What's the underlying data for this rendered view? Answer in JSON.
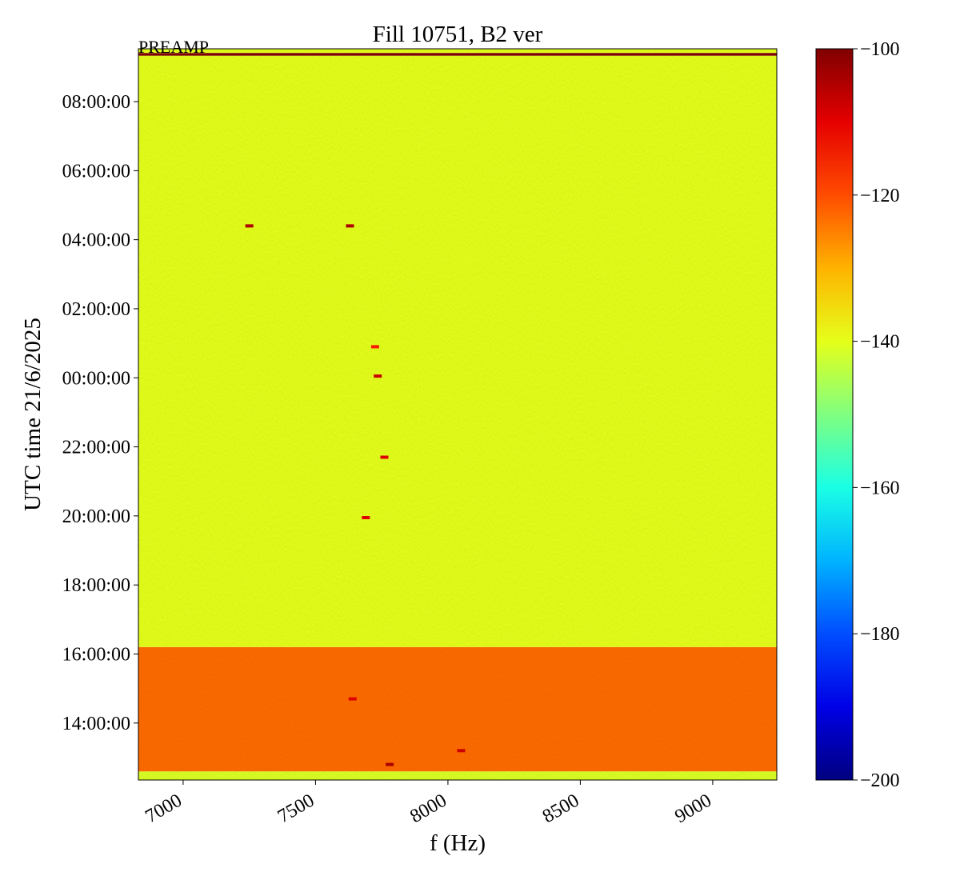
{
  "chart_data": {
    "type": "spectrogram",
    "title": "Fill 10751, B2 ver",
    "annotation": "PREAMP",
    "x_label": "f (Hz)",
    "y_label": "UTC time 21/6/2025",
    "xlim": [
      6831,
      9242
    ],
    "xticks": [
      7000,
      7500,
      8000,
      8500,
      9000
    ],
    "ylim": [
      -11.65,
      9.53
    ],
    "yticks": [
      {
        "value": -10,
        "label": "14:00:00"
      },
      {
        "value": -8,
        "label": "16:00:00"
      },
      {
        "value": -6,
        "label": "18:00:00"
      },
      {
        "value": -4,
        "label": "20:00:00"
      },
      {
        "value": -2,
        "label": "22:00:00"
      },
      {
        "value": 0,
        "label": "00:00:00"
      },
      {
        "value": 2,
        "label": "02:00:00"
      },
      {
        "value": 4,
        "label": "04:00:00"
      },
      {
        "value": 6,
        "label": "06:00:00"
      },
      {
        "value": 8,
        "label": "08:00:00"
      }
    ],
    "colormap": "jet",
    "clim": [
      -200,
      -100
    ],
    "cticks": [
      {
        "value": -200,
        "label": "−200"
      },
      {
        "value": -180,
        "label": "−180"
      },
      {
        "value": -160,
        "label": "−160"
      },
      {
        "value": -140,
        "label": "−140"
      },
      {
        "value": -120,
        "label": "−120"
      },
      {
        "value": -100,
        "label": "−100"
      }
    ],
    "bands": [
      {
        "y": [
          -11.65,
          -11.4
        ],
        "level": -141
      },
      {
        "y": [
          -11.4,
          -7.8
        ],
        "level": -123
      },
      {
        "y": [
          -7.8,
          9.33
        ],
        "level": -140
      },
      {
        "y": [
          9.33,
          9.41
        ],
        "level": -100
      },
      {
        "y": [
          9.41,
          9.53
        ],
        "level": -140
      }
    ],
    "features": [
      {
        "x": 7250,
        "y": 4.4,
        "level": -105
      },
      {
        "x": 7630,
        "y": 4.4,
        "level": -105
      },
      {
        "x": 7725,
        "y": 0.9,
        "level": -115
      },
      {
        "x": 7735,
        "y": 0.05,
        "level": -108
      },
      {
        "x": 7760,
        "y": -2.3,
        "level": -110
      },
      {
        "x": 7690,
        "y": -4.05,
        "level": -110
      },
      {
        "x": 7640,
        "y": -9.3,
        "level": -110
      },
      {
        "x": 7780,
        "y": -11.2,
        "level": -105
      },
      {
        "x": 8050,
        "y": -10.8,
        "level": -108
      }
    ]
  }
}
